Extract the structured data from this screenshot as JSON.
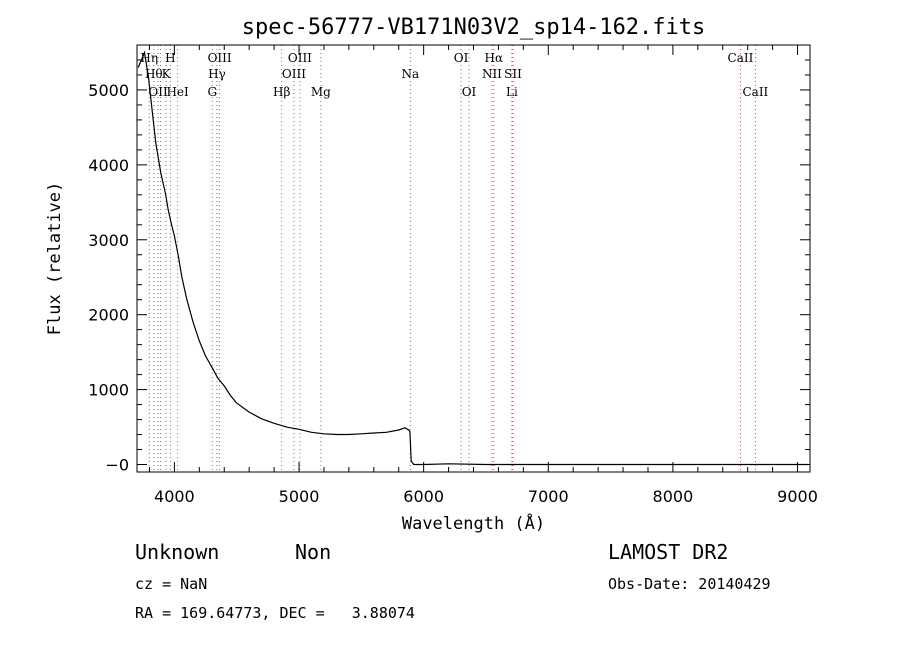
{
  "chart_data": {
    "type": "line",
    "title": "spec-56777-VB171N03V2_sp14-162.fits",
    "xlabel": "Wavelength (Å)",
    "ylabel": "Flux (relative)",
    "xlim": [
      3700,
      9100
    ],
    "ylim": [
      -100,
      5600
    ],
    "xticks": [
      4000,
      5000,
      6000,
      7000,
      8000,
      9000
    ],
    "yticks": [
      0,
      1000,
      2000,
      3000,
      4000,
      5000
    ],
    "ytick_labels": [
      "−0",
      "1000",
      "2000",
      "3000",
      "4000",
      "5000"
    ],
    "grid": false,
    "series": [
      {
        "x": [
          3710,
          3760,
          3790,
          3810,
          3830,
          3850,
          3870,
          3890,
          3910,
          3930,
          3950,
          3970,
          4000,
          4030,
          4060,
          4100,
          4150,
          4200,
          4250,
          4300,
          4350,
          4400,
          4450,
          4500,
          4600,
          4700,
          4800,
          4900,
          5000,
          5100,
          5200,
          5300,
          5400,
          5500,
          5600,
          5700,
          5800,
          5850,
          5880,
          5890,
          5900,
          5920,
          6000,
          6200,
          6500,
          7000,
          7500,
          8000,
          8500,
          9000,
          9080
        ],
        "y": [
          5300,
          5500,
          5200,
          4900,
          4600,
          4300,
          4100,
          3900,
          3750,
          3600,
          3400,
          3250,
          3050,
          2800,
          2500,
          2200,
          1900,
          1650,
          1450,
          1300,
          1150,
          1050,
          920,
          820,
          700,
          610,
          550,
          500,
          470,
          430,
          410,
          400,
          400,
          410,
          420,
          430,
          460,
          490,
          460,
          440,
          50,
          0,
          0,
          10,
          0,
          0,
          0,
          0,
          0,
          0,
          0
        ]
      }
    ],
    "lines": [
      {
        "wl": 3798,
        "color": "#777777",
        "label": "Hη",
        "row": 0
      },
      {
        "wl": 3835,
        "color": "#777777",
        "label": "Hθ",
        "row": 1
      },
      {
        "wl": 3869,
        "color": "#777777",
        "label": "OII",
        "row": 2
      },
      {
        "wl": 3889,
        "color": "#777777",
        "label": "",
        "row": 0
      },
      {
        "wl": 3934,
        "color": "#777777",
        "label": "K",
        "row": 1
      },
      {
        "wl": 3968,
        "color": "#777777",
        "label": "H",
        "row": 0
      },
      {
        "wl": 4026,
        "color": "#777777",
        "label": "HeI",
        "row": 2
      },
      {
        "wl": 4304,
        "color": "#777777",
        "label": "G",
        "row": 2
      },
      {
        "wl": 4341,
        "color": "#777777",
        "label": "Hγ",
        "row": 1
      },
      {
        "wl": 4363,
        "color": "#777777",
        "label": "OIII",
        "row": 0
      },
      {
        "wl": 4861,
        "color": "#777777",
        "label": "Hβ",
        "row": 2
      },
      {
        "wl": 4959,
        "color": "#777777",
        "label": "OIII",
        "row": 1
      },
      {
        "wl": 5007,
        "color": "#777777",
        "label": "OIII",
        "row": 0
      },
      {
        "wl": 5175,
        "color": "#777777",
        "label": "Mg",
        "row": 2
      },
      {
        "wl": 5893,
        "color": "#777777",
        "label": "Na",
        "row": 1
      },
      {
        "wl": 6300,
        "color": "#c85050",
        "label": "OI",
        "row": 0
      },
      {
        "wl": 6364,
        "color": "#c85050",
        "label": "OI",
        "row": 2
      },
      {
        "wl": 6548,
        "color": "#c85050",
        "label": "NII",
        "row": 1
      },
      {
        "wl": 6563,
        "color": "#c85050",
        "label": "Hα",
        "row": 0
      },
      {
        "wl": 6717,
        "color": "#c85050",
        "label": "SII",
        "row": 1
      },
      {
        "wl": 6708,
        "color": "#c85050",
        "label": "Li",
        "row": 2
      },
      {
        "wl": 8542,
        "color": "#c85050",
        "label": "CaII",
        "row": 0
      },
      {
        "wl": 8662,
        "color": "#c85050",
        "label": "CaII",
        "row": 2
      }
    ]
  },
  "footer": {
    "class": "Unknown",
    "subclass": "Non",
    "survey": "LAMOST DR2",
    "cz": "cz = NaN",
    "obs_date": "Obs-Date: 20140429",
    "coords": "RA = 169.64773, DEC =   3.88074"
  }
}
